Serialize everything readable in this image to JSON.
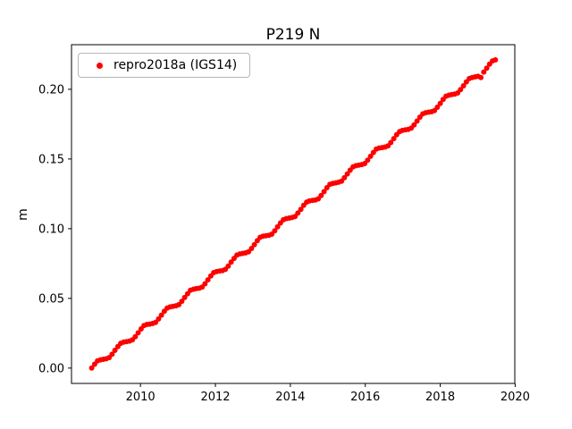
{
  "figure": {
    "title": "P219 N"
  },
  "chart_data": {
    "type": "scatter",
    "title": "P219 N",
    "xlabel": "",
    "ylabel": "m",
    "legend_position": "upper left",
    "grid": false,
    "marker_color": "#ff0000",
    "xlim": [
      2008.16,
      2019.99
    ],
    "ylim": [
      -0.011,
      0.232
    ],
    "x_ticks": [
      2010,
      2012,
      2014,
      2016,
      2018,
      2020
    ],
    "x_tick_labels": [
      "2010",
      "2012",
      "2014",
      "2016",
      "2018",
      "2020"
    ],
    "y_ticks": [
      0.0,
      0.05,
      0.1,
      0.15,
      0.2
    ],
    "y_tick_labels": [
      "0.00",
      "0.05",
      "0.10",
      "0.15",
      "0.20"
    ],
    "series": [
      {
        "name": "repro2018a (IGS14)",
        "color": "#ff0000",
        "marker": "circle",
        "x_start": 2008.7,
        "x_step": 0.0775,
        "y": [
          0.0,
          0.0028,
          0.0052,
          0.0059,
          0.0063,
          0.0067,
          0.0075,
          0.0099,
          0.0127,
          0.0154,
          0.0178,
          0.0186,
          0.019,
          0.0194,
          0.0202,
          0.0225,
          0.0253,
          0.0281,
          0.0305,
          0.0313,
          0.0316,
          0.032,
          0.0328,
          0.0352,
          0.038,
          0.0408,
          0.0431,
          0.0439,
          0.0443,
          0.0447,
          0.0455,
          0.0479,
          0.0506,
          0.0534,
          0.0558,
          0.0566,
          0.057,
          0.0573,
          0.0581,
          0.0605,
          0.0633,
          0.0661,
          0.0685,
          0.0692,
          0.0696,
          0.07,
          0.0708,
          0.0732,
          0.076,
          0.0787,
          0.0811,
          0.0819,
          0.0823,
          0.0827,
          0.0834,
          0.0858,
          0.0886,
          0.0914,
          0.0938,
          0.0946,
          0.0949,
          0.0953,
          0.0961,
          0.0985,
          0.1013,
          0.1041,
          0.1064,
          0.1072,
          0.1076,
          0.108,
          0.1088,
          0.1112,
          0.1139,
          0.1167,
          0.1191,
          0.1199,
          0.1203,
          0.1206,
          0.1214,
          0.1238,
          0.1266,
          0.1294,
          0.1318,
          0.1325,
          0.1329,
          0.1333,
          0.1341,
          0.1365,
          0.1393,
          0.142,
          0.1444,
          0.1452,
          0.1456,
          0.146,
          0.1467,
          0.1491,
          0.1519,
          0.1547,
          0.1571,
          0.1579,
          0.1582,
          0.1586,
          0.1594,
          0.1618,
          0.1646,
          0.1674,
          0.1697,
          0.1705,
          0.1709,
          0.1713,
          0.1721,
          0.1744,
          0.1772,
          0.18,
          0.1824,
          0.1832,
          0.1836,
          0.1839,
          0.1847,
          0.1871,
          0.1899,
          0.1927,
          0.1951,
          0.1958,
          0.1962,
          0.1966,
          0.1974,
          0.1998,
          0.2025,
          0.2053,
          0.2077,
          0.2085,
          0.2089,
          0.2093,
          0.2085,
          0.2124,
          0.2152,
          0.218,
          0.2204,
          0.2211
        ]
      }
    ]
  },
  "legend": {
    "entries": [
      {
        "label": "repro2018a (IGS14)",
        "color": "#ff0000"
      }
    ]
  }
}
